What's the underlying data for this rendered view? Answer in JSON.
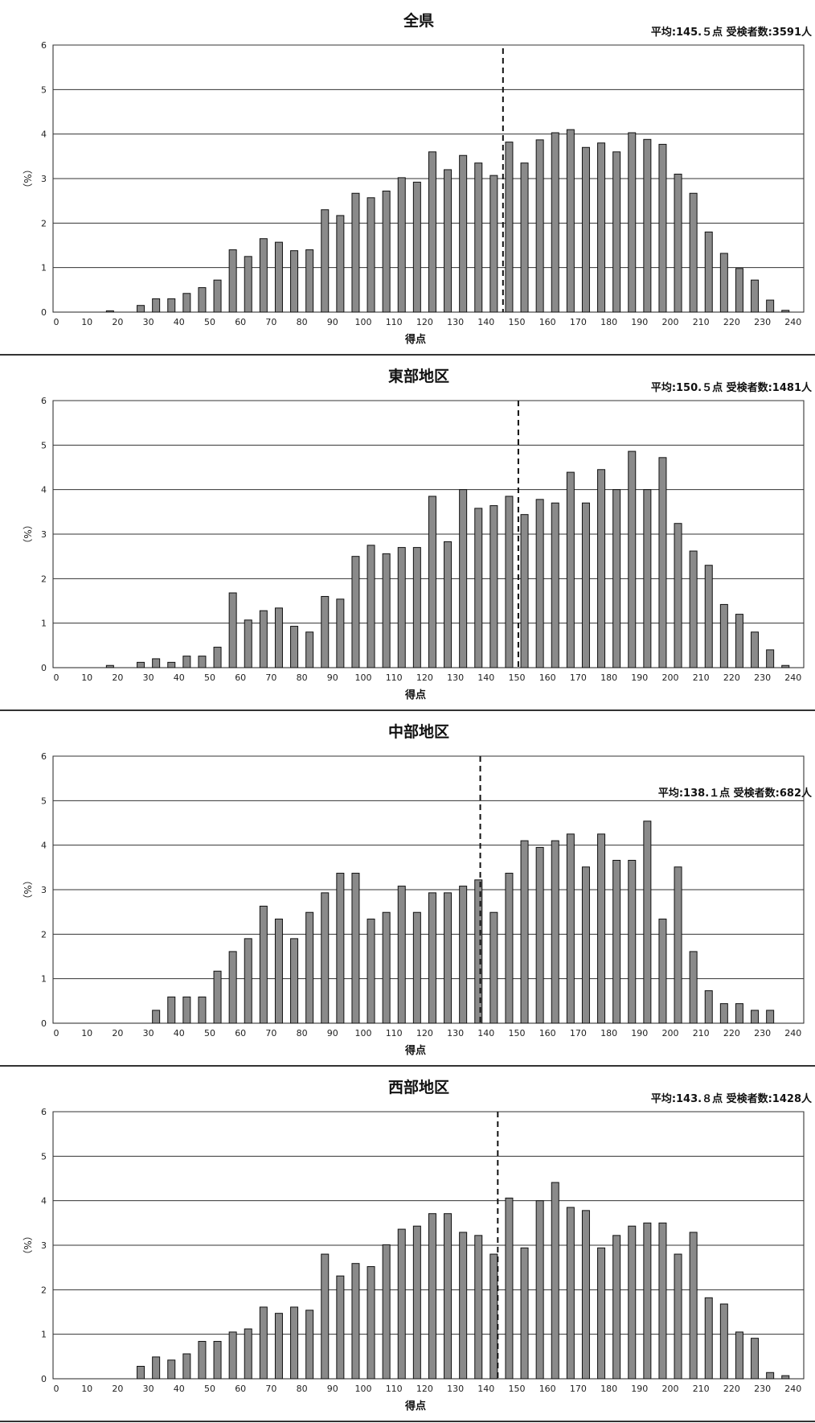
{
  "chart_data": [
    {
      "type": "bar",
      "title": "全県",
      "stats": "平均:145.５点 受検者数:3591人",
      "xlabel": "得点",
      "ylabel": "（%）",
      "mean": 145.5,
      "ylim": [
        0,
        6
      ],
      "yticks": [
        "0",
        "1",
        "2",
        "3",
        "4",
        "5",
        "6"
      ],
      "xticks": [
        "0",
        "10",
        "20",
        "30",
        "40",
        "50",
        "60",
        "70",
        "80",
        "90",
        "100",
        "110",
        "120",
        "130",
        "140",
        "150",
        "160",
        "170",
        "180",
        "190",
        "200",
        "210",
        "220",
        "230",
        "240"
      ],
      "bar_scores": [
        0,
        5,
        10,
        15,
        20,
        25,
        30,
        35,
        40,
        45,
        50,
        55,
        60,
        65,
        70,
        75,
        80,
        85,
        90,
        95,
        100,
        105,
        110,
        115,
        120,
        125,
        130,
        135,
        140,
        145,
        150,
        155,
        160,
        165,
        170,
        175,
        180,
        185,
        190,
        195,
        200,
        205,
        210,
        215,
        220,
        225,
        230,
        235
      ],
      "values": [
        0,
        0,
        0,
        0.03,
        0,
        0.15,
        0.3,
        0.3,
        0.42,
        0.55,
        0.72,
        1.4,
        1.25,
        1.65,
        1.57,
        1.38,
        1.4,
        2.3,
        2.17,
        2.67,
        2.57,
        2.72,
        3.02,
        2.92,
        3.6,
        3.2,
        3.52,
        3.35,
        3.07,
        3.82,
        3.35,
        3.87,
        4.03,
        4.1,
        3.7,
        3.8,
        3.6,
        4.03,
        3.88,
        3.77,
        3.1,
        2.67,
        1.8,
        1.32,
        0.98,
        0.72,
        0.27,
        0.04
      ],
      "grid": true
    },
    {
      "type": "bar",
      "title": "東部地区",
      "stats": "平均:150.５点 受検者数:1481人",
      "xlabel": "得点",
      "ylabel": "（%）",
      "mean": 150.5,
      "ylim": [
        0,
        6
      ],
      "yticks": [
        "0",
        "1",
        "2",
        "3",
        "4",
        "5",
        "6"
      ],
      "xticks": [
        "0",
        "10",
        "20",
        "30",
        "40",
        "50",
        "60",
        "70",
        "80",
        "90",
        "100",
        "110",
        "120",
        "130",
        "140",
        "150",
        "160",
        "170",
        "180",
        "190",
        "200",
        "210",
        "220",
        "230",
        "240"
      ],
      "bar_scores": [
        0,
        5,
        10,
        15,
        20,
        25,
        30,
        35,
        40,
        45,
        50,
        55,
        60,
        65,
        70,
        75,
        80,
        85,
        90,
        95,
        100,
        105,
        110,
        115,
        120,
        125,
        130,
        135,
        140,
        145,
        150,
        155,
        160,
        165,
        170,
        175,
        180,
        185,
        190,
        195,
        200,
        205,
        210,
        215,
        220,
        225,
        230,
        235
      ],
      "values": [
        0,
        0,
        0,
        0.05,
        0,
        0.12,
        0.2,
        0.12,
        0.26,
        0.26,
        0.46,
        1.68,
        1.07,
        1.28,
        1.34,
        0.93,
        0.8,
        1.6,
        1.54,
        2.5,
        2.75,
        2.56,
        2.7,
        2.7,
        3.85,
        2.83,
        4.0,
        3.58,
        3.64,
        3.85,
        3.44,
        3.78,
        3.7,
        4.39,
        3.7,
        4.45,
        4.0,
        4.86,
        4.0,
        4.72,
        3.24,
        2.62,
        2.3,
        1.42,
        1.2,
        0.8,
        0.4,
        0.05
      ],
      "grid": true
    },
    {
      "type": "bar",
      "title": "中部地区",
      "stats": "平均:138.１点 受検者数:682人",
      "xlabel": "得点",
      "ylabel": "（%）",
      "mean": 138.1,
      "ylim": [
        0,
        6
      ],
      "yticks": [
        "0",
        "1",
        "2",
        "3",
        "4",
        "5",
        "6"
      ],
      "xticks": [
        "0",
        "10",
        "20",
        "30",
        "40",
        "50",
        "60",
        "70",
        "80",
        "90",
        "100",
        "110",
        "120",
        "130",
        "140",
        "150",
        "160",
        "170",
        "180",
        "190",
        "200",
        "210",
        "220",
        "230",
        "240"
      ],
      "bar_scores": [
        0,
        5,
        10,
        15,
        20,
        25,
        30,
        35,
        40,
        45,
        50,
        55,
        60,
        65,
        70,
        75,
        80,
        85,
        90,
        95,
        100,
        105,
        110,
        115,
        120,
        125,
        130,
        135,
        140,
        145,
        150,
        155,
        160,
        165,
        170,
        175,
        180,
        185,
        190,
        195,
        200,
        205,
        210,
        215,
        220,
        225,
        230,
        235
      ],
      "values": [
        0,
        0,
        0,
        0,
        0,
        0,
        0.29,
        0.59,
        0.59,
        0.59,
        1.17,
        1.61,
        1.9,
        2.63,
        2.34,
        1.9,
        2.49,
        2.93,
        3.37,
        3.37,
        2.34,
        2.49,
        3.08,
        2.49,
        2.93,
        2.93,
        3.08,
        3.22,
        2.49,
        3.37,
        4.1,
        3.95,
        4.1,
        4.25,
        3.51,
        4.25,
        3.66,
        3.66,
        4.54,
        2.34,
        3.51,
        1.61,
        0.73,
        0.44,
        0.44,
        0.29,
        0.29,
        0
      ],
      "grid": true
    },
    {
      "type": "bar",
      "title": "西部地区",
      "stats": "平均:143.８点 受検者数:1428人",
      "xlabel": "得点",
      "ylabel": "（%）",
      "mean": 143.8,
      "ylim": [
        0,
        6
      ],
      "yticks": [
        "0",
        "1",
        "2",
        "3",
        "4",
        "5",
        "6"
      ],
      "xticks": [
        "0",
        "10",
        "20",
        "30",
        "40",
        "50",
        "60",
        "70",
        "80",
        "90",
        "100",
        "110",
        "120",
        "130",
        "140",
        "150",
        "160",
        "170",
        "180",
        "190",
        "200",
        "210",
        "220",
        "230",
        "240"
      ],
      "bar_scores": [
        0,
        5,
        10,
        15,
        20,
        25,
        30,
        35,
        40,
        45,
        50,
        55,
        60,
        65,
        70,
        75,
        80,
        85,
        90,
        95,
        100,
        105,
        110,
        115,
        120,
        125,
        130,
        135,
        140,
        145,
        150,
        155,
        160,
        165,
        170,
        175,
        180,
        185,
        190,
        195,
        200,
        205,
        210,
        215,
        220,
        225,
        230,
        235
      ],
      "values": [
        0,
        0,
        0,
        0,
        0,
        0.28,
        0.49,
        0.42,
        0.56,
        0.84,
        0.84,
        1.05,
        1.12,
        1.61,
        1.47,
        1.61,
        1.54,
        2.8,
        2.31,
        2.59,
        2.52,
        3.01,
        3.36,
        3.43,
        3.71,
        3.71,
        3.29,
        3.22,
        2.8,
        4.06,
        2.94,
        4.0,
        4.41,
        3.85,
        3.78,
        2.94,
        3.22,
        3.43,
        3.5,
        3.5,
        2.8,
        3.29,
        1.82,
        1.68,
        1.05,
        0.91,
        0.14,
        0.07
      ],
      "grid": true
    }
  ]
}
